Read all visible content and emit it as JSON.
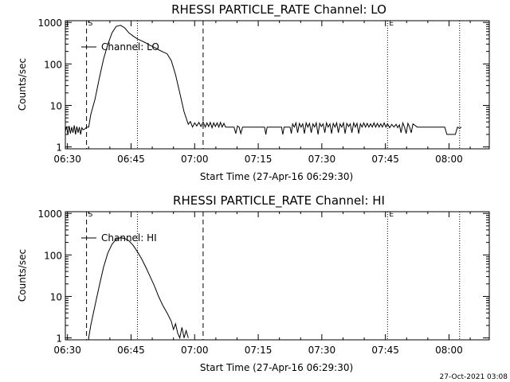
{
  "footer": {
    "timestamp": "27-Oct-2021 03:08"
  },
  "chart_data": [
    {
      "type": "line",
      "title": "RHESSI PARTICLE_RATE Channel: LO",
      "xlabel": "Start Time (27-Apr-16 06:29:30)",
      "ylabel": "Counts/sec",
      "x_units": "minutes since 06:29:30",
      "xlim": [
        0,
        100
      ],
      "ylim": [
        0.9,
        1100
      ],
      "log_y": true,
      "x_ticks": [
        {
          "t": 0.5,
          "label": "06:30"
        },
        {
          "t": 15.5,
          "label": "06:45"
        },
        {
          "t": 30.5,
          "label": "07:00"
        },
        {
          "t": 45.5,
          "label": "07:15"
        },
        {
          "t": 60.5,
          "label": "07:30"
        },
        {
          "t": 75.5,
          "label": "07:45"
        },
        {
          "t": 90.5,
          "label": "08:00"
        }
      ],
      "y_ticks": [
        {
          "v": 1,
          "label": "1"
        },
        {
          "v": 10,
          "label": "10"
        },
        {
          "v": 100,
          "label": "100"
        },
        {
          "v": 1000,
          "label": "1000"
        }
      ],
      "legend": {
        "label": "Channel: LO",
        "position": "top-left"
      },
      "markers": [
        {
          "t": 5.0,
          "label": "S",
          "style": "dashed"
        },
        {
          "t": 17.0,
          "label": "",
          "style": "dotted"
        },
        {
          "t": 32.5,
          "label": "",
          "style": "dashed"
        },
        {
          "t": 76.0,
          "label": "E",
          "style": "dotted"
        },
        {
          "t": 93.0,
          "label": "",
          "style": "dotted"
        }
      ],
      "series": [
        {
          "name": "Channel: LO",
          "t": [
            0,
            0.3,
            0.6,
            0.9,
            1.2,
            1.5,
            1.8,
            2.1,
            2.4,
            2.7,
            3.0,
            3.3,
            3.6,
            3.9,
            4.2,
            4.6,
            5.0,
            5.5,
            6.0,
            7.0,
            8.0,
            9.0,
            10.0,
            11.0,
            12.0,
            13.0,
            14.0,
            15.0,
            16.0,
            17.0,
            18.0,
            19.0,
            20.0,
            21.0,
            22.0,
            23.0,
            24.0,
            25.0,
            26.0,
            27.0,
            28.0,
            29.0,
            29.5,
            30.0,
            30.5,
            31.0,
            31.5,
            32.0,
            32.5,
            33.0,
            33.4,
            33.8,
            34.2,
            34.6,
            35.0,
            35.4,
            35.8,
            36.2,
            36.6,
            37.0,
            37.4,
            37.8,
            38.2,
            38.6,
            39.0,
            39.4,
            39.8,
            40.2,
            40.6,
            41.0,
            41.4,
            41.8,
            42.2,
            42.6,
            43.0,
            44.0,
            45.0,
            46.0,
            47.0,
            47.3,
            47.6,
            48.0,
            49.0,
            50.0,
            51.0,
            51.3,
            51.6,
            52.0,
            53.0,
            53.3,
            53.6,
            54.0,
            54.4,
            54.8,
            55.2,
            55.6,
            56.0,
            56.4,
            56.8,
            57.2,
            57.6,
            58.0,
            58.4,
            58.8,
            59.2,
            59.6,
            60.0,
            60.4,
            60.8,
            61.2,
            61.6,
            62.0,
            62.4,
            62.8,
            63.2,
            63.6,
            64.0,
            64.4,
            64.8,
            65.2,
            65.6,
            66.0,
            66.4,
            66.8,
            67.2,
            67.6,
            68.0,
            68.4,
            68.8,
            69.2,
            69.6,
            70.0,
            70.4,
            70.8,
            71.2,
            71.6,
            72.0,
            72.4,
            72.8,
            73.2,
            73.6,
            74.0,
            74.4,
            74.8,
            75.2,
            75.6,
            76.0,
            76.5,
            77.0,
            77.5,
            78.0,
            78.4,
            78.8,
            79.2,
            79.6,
            80.0,
            80.4,
            80.8,
            81.2,
            81.6,
            82.0,
            83.0,
            84.0,
            85.0,
            86.0,
            87.0,
            88.0,
            89.0,
            89.5,
            90.0,
            91.0,
            92.0,
            92.5,
            93.0,
            93.4
          ],
          "values": [
            2.4,
            3.1,
            2.0,
            3.2,
            2.1,
            3.0,
            2.2,
            3.3,
            2.0,
            3.1,
            2.2,
            3.0,
            2.0,
            2.9,
            2.6,
            2.7,
            3.0,
            3.0,
            6.0,
            14,
            45,
            130,
            290,
            560,
            800,
            850,
            740,
            560,
            470,
            400,
            360,
            320,
            280,
            250,
            220,
            195,
            175,
            120,
            55,
            20,
            7,
            3.5,
            4.1,
            3.0,
            3.8,
            3.2,
            3.9,
            3.1,
            4.0,
            3.0,
            3.8,
            3.1,
            3.9,
            2.9,
            3.8,
            3.1,
            3.8,
            3.0,
            3.9,
            3.0,
            3.7,
            3.0,
            3.0,
            3.0,
            3.0,
            3.0,
            3.0,
            2.1,
            3.2,
            3.0,
            2.1,
            3.0,
            3.0,
            3.0,
            3.0,
            3.0,
            3.0,
            3.0,
            3.0,
            2.0,
            3.0,
            3.0,
            3.0,
            3.0,
            3.0,
            2.0,
            3.0,
            3.0,
            3.0,
            2.1,
            3.6,
            3.0,
            3.8,
            2.2,
            3.7,
            3.0,
            3.6,
            2.1,
            3.8,
            3.0,
            3.7,
            2.2,
            3.6,
            3.0,
            3.8,
            2.0,
            3.7,
            3.1,
            3.6,
            2.2,
            3.8,
            3.0,
            3.6,
            2.1,
            3.7,
            3.0,
            3.8,
            2.2,
            3.6,
            3.0,
            3.8,
            2.1,
            3.7,
            3.1,
            3.6,
            2.2,
            3.8,
            3.0,
            3.7,
            2.1,
            3.6,
            3.0,
            3.8,
            3.0,
            3.7,
            3.0,
            3.6,
            3.0,
            3.8,
            3.0,
            3.7,
            3.0,
            3.6,
            3.0,
            3.8,
            3.0,
            3.6,
            2.9,
            3.5,
            3.0,
            3.5,
            2.9,
            3.4,
            2.2,
            3.8,
            3.0,
            2.1,
            3.7,
            3.0,
            2.2,
            3.6,
            3.0,
            3.0,
            3.0,
            3.0,
            3.0,
            3.0,
            3.0,
            3.0,
            2.0,
            2.0,
            2.0,
            3.0,
            2.8,
            3.0
          ]
        }
      ]
    },
    {
      "type": "line",
      "title": "RHESSI PARTICLE_RATE Channel: HI",
      "xlabel": "Start Time (27-Apr-16 06:29:30)",
      "ylabel": "Counts/sec",
      "x_units": "minutes since 06:29:30",
      "xlim": [
        0,
        100
      ],
      "ylim": [
        0.9,
        1100
      ],
      "log_y": true,
      "x_ticks": [
        {
          "t": 0.5,
          "label": "06:30"
        },
        {
          "t": 15.5,
          "label": "06:45"
        },
        {
          "t": 30.5,
          "label": "07:00"
        },
        {
          "t": 45.5,
          "label": "07:15"
        },
        {
          "t": 60.5,
          "label": "07:30"
        },
        {
          "t": 75.5,
          "label": "07:45"
        },
        {
          "t": 90.5,
          "label": "08:00"
        }
      ],
      "y_ticks": [
        {
          "v": 1,
          "label": "1"
        },
        {
          "v": 10,
          "label": "10"
        },
        {
          "v": 100,
          "label": "100"
        },
        {
          "v": 1000,
          "label": "1000"
        }
      ],
      "legend": {
        "label": "Channel: HI",
        "position": "top-left"
      },
      "markers": [
        {
          "t": 5.0,
          "label": "S",
          "style": "dashed"
        },
        {
          "t": 17.0,
          "label": "",
          "style": "dotted"
        },
        {
          "t": 32.5,
          "label": "",
          "style": "dashed"
        },
        {
          "t": 76.0,
          "label": "E",
          "style": "dotted"
        },
        {
          "t": 93.0,
          "label": "",
          "style": "dotted"
        }
      ],
      "series": [
        {
          "name": "Channel: HI",
          "t": [
            5.5,
            6.0,
            7.0,
            8.0,
            9.0,
            10.0,
            11.0,
            12.0,
            13.0,
            14.0,
            15.0,
            16.0,
            17.0,
            18.0,
            19.0,
            20.0,
            21.0,
            22.0,
            23.0,
            24.0,
            25.0,
            25.5,
            26.0,
            26.5,
            27.0,
            27.5,
            28.0,
            28.5,
            29.0
          ],
          "values": [
            1.0,
            2.0,
            6,
            18,
            50,
            110,
            180,
            240,
            260,
            250,
            220,
            170,
            120,
            80,
            50,
            30,
            18,
            10,
            6,
            4,
            2.5,
            1.6,
            2.2,
            1.3,
            1.0,
            1.8,
            1.0,
            1.5,
            1.0
          ]
        }
      ]
    }
  ]
}
